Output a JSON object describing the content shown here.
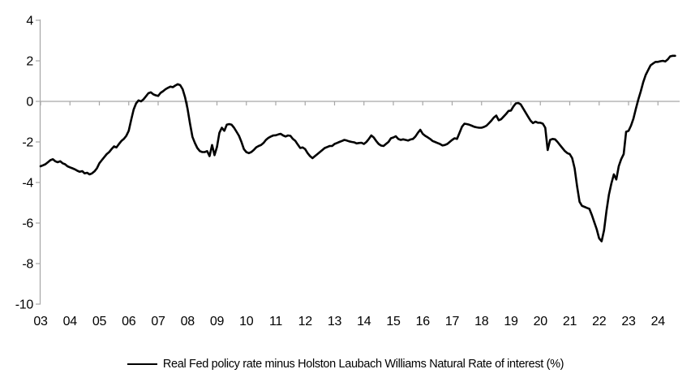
{
  "chart_data": {
    "type": "line",
    "title": "",
    "legend_position": "bottom-center",
    "grid": false,
    "zero_line": true,
    "x_axis": {
      "unit": "year",
      "tick_labels": [
        "03",
        "04",
        "05",
        "06",
        "07",
        "08",
        "09",
        "10",
        "11",
        "12",
        "13",
        "14",
        "15",
        "16",
        "17",
        "18",
        "19",
        "20",
        "21",
        "22",
        "23",
        "24"
      ]
    },
    "y_axis": {
      "min": -10,
      "max": 4,
      "tick_labels": [
        "4",
        "2",
        "0",
        "-2",
        "-4",
        "-6",
        "-8",
        "-10"
      ],
      "tick_values": [
        4,
        2,
        0,
        -2,
        -4,
        -6,
        -8,
        -10
      ]
    },
    "colors": {
      "axis": "#a6a6a6",
      "series": "#000000",
      "text": "#000000",
      "background": "#ffffff"
    },
    "series": [
      {
        "name": "Real Fed policy rate minus Holston Laubach Williams Natural Rate of interest (%)",
        "color": "#000000",
        "frequency": "monthly",
        "start": "2003-01",
        "end": "2024-08",
        "values": [
          -3.2,
          -3.15,
          -3.1,
          -3.0,
          -2.9,
          -2.85,
          -2.95,
          -3.0,
          -2.95,
          -3.05,
          -3.1,
          -3.2,
          -3.25,
          -3.3,
          -3.35,
          -3.42,
          -3.47,
          -3.44,
          -3.55,
          -3.52,
          -3.6,
          -3.55,
          -3.45,
          -3.3,
          -3.05,
          -2.9,
          -2.75,
          -2.6,
          -2.5,
          -2.35,
          -2.22,
          -2.27,
          -2.1,
          -1.95,
          -1.85,
          -1.7,
          -1.45,
          -0.9,
          -0.4,
          -0.1,
          0.05,
          0.0,
          0.1,
          0.25,
          0.4,
          0.45,
          0.35,
          0.3,
          0.27,
          0.42,
          0.5,
          0.6,
          0.67,
          0.73,
          0.7,
          0.78,
          0.85,
          0.8,
          0.6,
          0.2,
          -0.35,
          -1.1,
          -1.75,
          -2.05,
          -2.3,
          -2.45,
          -2.5,
          -2.5,
          -2.45,
          -2.7,
          -2.15,
          -2.65,
          -2.25,
          -1.55,
          -1.3,
          -1.45,
          -1.15,
          -1.12,
          -1.15,
          -1.3,
          -1.5,
          -1.7,
          -2.0,
          -2.35,
          -2.5,
          -2.55,
          -2.5,
          -2.4,
          -2.27,
          -2.2,
          -2.15,
          -2.05,
          -1.9,
          -1.8,
          -1.73,
          -1.68,
          -1.67,
          -1.63,
          -1.6,
          -1.68,
          -1.73,
          -1.68,
          -1.7,
          -1.85,
          -1.95,
          -2.13,
          -2.3,
          -2.27,
          -2.35,
          -2.55,
          -2.7,
          -2.8,
          -2.7,
          -2.6,
          -2.5,
          -2.4,
          -2.3,
          -2.25,
          -2.2,
          -2.2,
          -2.1,
          -2.05,
          -2.0,
          -1.95,
          -1.9,
          -1.93,
          -1.97,
          -2.0,
          -2.02,
          -2.07,
          -2.05,
          -2.04,
          -2.1,
          -2.0,
          -1.85,
          -1.68,
          -1.78,
          -1.95,
          -2.1,
          -2.18,
          -2.2,
          -2.1,
          -2.0,
          -1.82,
          -1.78,
          -1.72,
          -1.85,
          -1.9,
          -1.87,
          -1.9,
          -1.93,
          -1.88,
          -1.85,
          -1.73,
          -1.55,
          -1.4,
          -1.6,
          -1.7,
          -1.77,
          -1.85,
          -1.95,
          -2.0,
          -2.05,
          -2.1,
          -2.17,
          -2.15,
          -2.1,
          -2.0,
          -1.9,
          -1.82,
          -1.85,
          -1.55,
          -1.25,
          -1.1,
          -1.12,
          -1.15,
          -1.2,
          -1.25,
          -1.28,
          -1.3,
          -1.3,
          -1.26,
          -1.2,
          -1.08,
          -0.95,
          -0.8,
          -0.7,
          -0.93,
          -0.88,
          -0.75,
          -0.62,
          -0.47,
          -0.45,
          -0.25,
          -0.1,
          -0.08,
          -0.15,
          -0.35,
          -0.55,
          -0.75,
          -0.95,
          -1.07,
          -1.0,
          -1.05,
          -1.05,
          -1.1,
          -1.3,
          -2.4,
          -1.9,
          -1.85,
          -1.87,
          -2.0,
          -2.15,
          -2.3,
          -2.45,
          -2.55,
          -2.6,
          -2.8,
          -3.3,
          -4.2,
          -4.95,
          -5.15,
          -5.2,
          -5.25,
          -5.3,
          -5.6,
          -5.95,
          -6.3,
          -6.75,
          -6.9,
          -6.35,
          -5.4,
          -4.6,
          -4.05,
          -3.6,
          -3.85,
          -3.2,
          -2.85,
          -2.6,
          -1.5,
          -1.45,
          -1.2,
          -0.85,
          -0.35,
          0.1,
          0.5,
          0.95,
          1.3,
          1.55,
          1.78,
          1.87,
          1.95,
          1.95,
          1.98,
          2.0,
          1.97,
          2.07,
          2.22,
          2.25,
          2.25
        ]
      }
    ]
  }
}
